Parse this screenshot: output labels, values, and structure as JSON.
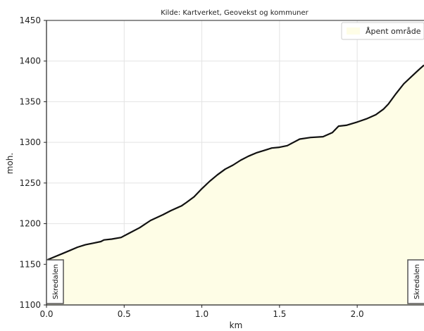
{
  "chart_data": {
    "type": "area",
    "title": "Kilde: Kartverket, Geovekst og kommuner",
    "xlabel": "km",
    "ylabel": "moh.",
    "xlim": [
      0,
      2.43
    ],
    "ylim": [
      1100,
      1450
    ],
    "xticks": [
      {
        "value": 0.0,
        "label": "0.0"
      },
      {
        "value": 0.5,
        "label": "0.5"
      },
      {
        "value": 1.0,
        "label": "1.0"
      },
      {
        "value": 1.5,
        "label": "1.5"
      },
      {
        "value": 2.0,
        "label": "2.0"
      }
    ],
    "yticks": [
      {
        "value": 1100,
        "label": "1100"
      },
      {
        "value": 1150,
        "label": "1150"
      },
      {
        "value": 1200,
        "label": "1200"
      },
      {
        "value": 1250,
        "label": "1250"
      },
      {
        "value": 1300,
        "label": "1300"
      },
      {
        "value": 1350,
        "label": "1350"
      },
      {
        "value": 1400,
        "label": "1400"
      },
      {
        "value": 1450,
        "label": "1450"
      }
    ],
    "grid": true,
    "legend": {
      "position": "top-right",
      "entries": [
        {
          "label": "Åpent område",
          "color": "#fefde6"
        }
      ]
    },
    "series": [
      {
        "name": "Åpent område",
        "fill_color": "#fefde6",
        "line_color": "#111111",
        "x": [
          0.0,
          0.05,
          0.1,
          0.15,
          0.2,
          0.25,
          0.3,
          0.35,
          0.37,
          0.42,
          0.48,
          0.53,
          0.6,
          0.67,
          0.75,
          0.8,
          0.87,
          0.9,
          0.95,
          1.0,
          1.05,
          1.1,
          1.15,
          1.2,
          1.25,
          1.3,
          1.35,
          1.4,
          1.45,
          1.5,
          1.55,
          1.58,
          1.63,
          1.7,
          1.78,
          1.84,
          1.88,
          1.93,
          2.0,
          2.06,
          2.12,
          2.17,
          2.2,
          2.25,
          2.3,
          2.35,
          2.4,
          2.43
        ],
        "y": [
          1155,
          1159,
          1163,
          1167,
          1171,
          1174,
          1176,
          1178,
          1180,
          1181,
          1183,
          1188,
          1195,
          1204,
          1211,
          1216,
          1222,
          1226,
          1233,
          1243,
          1252,
          1260,
          1267,
          1272,
          1278,
          1283,
          1287,
          1290,
          1293,
          1294,
          1296,
          1299,
          1304,
          1306,
          1307,
          1312,
          1320,
          1321,
          1325,
          1329,
          1334,
          1341,
          1347,
          1360,
          1372,
          1381,
          1390,
          1395
        ]
      }
    ],
    "annotations": [
      {
        "label": "Skredalen",
        "x": 0.0,
        "side": "left"
      },
      {
        "label": "Skredalen",
        "x": 2.43,
        "side": "right"
      }
    ]
  }
}
